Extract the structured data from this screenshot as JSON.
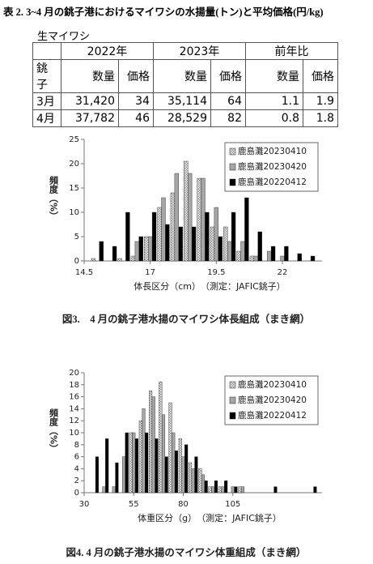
{
  "document": {
    "title": "表 2. 3~4 月の銚子港におけるマイワシの水揚量(トン)と平均価格(円/kg)",
    "subtitle": "生マイワシ",
    "table": {
      "group_header": [
        "2022年",
        "2023年",
        "前年比"
      ],
      "header": [
        "銚子",
        "数量",
        "価格",
        "数量",
        "価格",
        "数量",
        "価格"
      ],
      "rows": [
        [
          "3月",
          "31,420",
          "34",
          "35,114",
          "64",
          "1.1",
          "1.9"
        ],
        [
          "4月",
          "37,782",
          "46",
          "28,529",
          "82",
          "0.8",
          "1.8"
        ]
      ]
    }
  },
  "chart_data": [
    {
      "type": "bar",
      "xlabel": "体長区分（cm）　（測定：JAFIC銚子）",
      "ylabel": "頻度（%）",
      "caption": "図3.　4 月の銚子港水揚のマイワシ体長組成（まき網）",
      "x": [
        15,
        15.5,
        16,
        16.5,
        17,
        17.5,
        18,
        18.5,
        19,
        19.5,
        20,
        20.5,
        21,
        21.5,
        22,
        22.5,
        23
      ],
      "series": [
        {
          "name": "鹿島灘20230410",
          "color": "#cfcfcf",
          "pattern": "checkered",
          "values": [
            0.5,
            0,
            0.5,
            1,
            5,
            11,
            14,
            20.5,
            17,
            7,
            7,
            2,
            1,
            0,
            0,
            0,
            0
          ]
        },
        {
          "name": "鹿島灘20230420",
          "color": "#a6a6a6",
          "values": [
            0,
            0,
            0,
            4,
            5,
            13,
            18,
            18,
            17,
            11,
            4,
            4,
            1,
            2,
            1,
            0,
            0
          ]
        },
        {
          "name": "鹿島灘20220412",
          "color": "#000000",
          "values": [
            4,
            3,
            10,
            5,
            10,
            7.5,
            7,
            7,
            10,
            5,
            10,
            13,
            6,
            3,
            3,
            1.5,
            1
          ]
        }
      ],
      "xlim": [
        14.5,
        23.5
      ],
      "xticks": [
        14.5,
        17,
        19.5,
        22
      ],
      "ylim": [
        0,
        25
      ],
      "yticks": [
        0,
        5,
        10,
        15,
        20,
        25
      ],
      "legend": "upper right"
    },
    {
      "type": "bar",
      "xlabel": "体重区分（g）　（測定：JAFIC銚子）",
      "ylabel": "頻度（%）",
      "caption": "図4. 4 月の銚子港水揚のマイワシ体重組成（まき網）",
      "x": [
        35,
        40,
        45,
        50,
        55,
        60,
        65,
        70,
        75,
        80,
        85,
        90,
        95,
        100,
        105,
        110,
        115,
        120,
        125,
        130,
        135,
        140,
        145
      ],
      "series": [
        {
          "name": "鹿島灘20230410",
          "color": "#cfcfcf",
          "pattern": "checkered",
          "values": [
            0,
            0,
            0,
            0,
            10,
            12,
            17,
            18.5,
            15,
            9,
            5,
            4,
            1,
            1,
            0,
            1,
            0,
            0,
            0,
            0,
            0,
            0,
            0
          ]
        },
        {
          "name": "鹿島灘20230420",
          "color": "#a6a6a6",
          "values": [
            0,
            1,
            1,
            6,
            10,
            14,
            16,
            13,
            10,
            6,
            4,
            3,
            1,
            1,
            1,
            1,
            0,
            0,
            0,
            0,
            0,
            0,
            0
          ]
        },
        {
          "name": "鹿島灘20220412",
          "color": "#000000",
          "values": [
            6,
            9,
            5,
            10,
            9,
            10,
            9,
            6,
            7,
            8,
            6,
            2,
            2,
            2,
            1,
            0,
            0,
            0,
            1,
            0,
            0,
            0,
            1
          ]
        }
      ],
      "xlim": [
        30,
        150
      ],
      "xticks": [
        30,
        55,
        80,
        105
      ],
      "ylim": [
        0,
        20
      ],
      "yticks": [
        0,
        2,
        4,
        6,
        8,
        10,
        12,
        14,
        16,
        18,
        20
      ],
      "legend": "upper right"
    }
  ]
}
